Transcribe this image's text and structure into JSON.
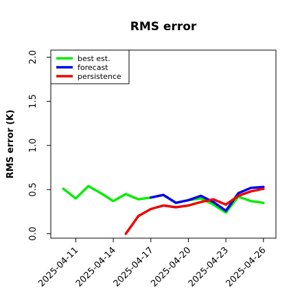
{
  "chart_data": {
    "type": "line",
    "title": "RMS error",
    "xlabel": "",
    "ylabel": "RMS error (K)",
    "ylim": [
      -0.05,
      2.08
    ],
    "y_ticks": [
      0.0,
      0.5,
      1.0,
      1.5,
      2.0
    ],
    "y_tick_labels": [
      "0.0",
      "0.5",
      "1.0",
      "1.5",
      "2.0"
    ],
    "x_range": [
      "2025-04-09",
      "2025-04-27"
    ],
    "x_ticks": [
      "2025-04-11",
      "2025-04-14",
      "2025-04-17",
      "2025-04-20",
      "2025-04-23",
      "2025-04-26"
    ],
    "x_tick_colors": [
      "#000000",
      "#000000",
      "#228b22",
      "#000000",
      "#000000",
      "#000000"
    ],
    "legend_position": "top-left",
    "grid": false,
    "series": [
      {
        "name": "best est.",
        "color": "#00ee00",
        "x": [
          "2025-04-10",
          "2025-04-11",
          "2025-04-12",
          "2025-04-13",
          "2025-04-14",
          "2025-04-15",
          "2025-04-16",
          "2025-04-17",
          "2025-04-18",
          "2025-04-19",
          "2025-04-20",
          "2025-04-21",
          "2025-04-22",
          "2025-04-23",
          "2025-04-24",
          "2025-04-25",
          "2025-04-26"
        ],
        "values": [
          0.51,
          0.4,
          0.54,
          0.46,
          0.37,
          0.45,
          0.39,
          0.41,
          0.44,
          0.35,
          0.38,
          0.4,
          0.33,
          0.24,
          0.42,
          0.37,
          0.35
        ]
      },
      {
        "name": "forecast",
        "color": "#0000ee",
        "x": [
          "2025-04-17",
          "2025-04-18",
          "2025-04-19",
          "2025-04-20",
          "2025-04-21",
          "2025-04-22",
          "2025-04-23",
          "2025-04-24",
          "2025-04-25",
          "2025-04-26"
        ],
        "values": [
          0.41,
          0.44,
          0.35,
          0.38,
          0.43,
          0.36,
          0.26,
          0.46,
          0.52,
          0.53
        ]
      },
      {
        "name": "persistence",
        "color": "#ee0000",
        "x": [
          "2025-04-15",
          "2025-04-16",
          "2025-04-17",
          "2025-04-18",
          "2025-04-19",
          "2025-04-20",
          "2025-04-21",
          "2025-04-22",
          "2025-04-23",
          "2025-04-24",
          "2025-04-25",
          "2025-04-26"
        ],
        "values": [
          0.0,
          0.2,
          0.28,
          0.32,
          0.3,
          0.32,
          0.36,
          0.39,
          0.33,
          0.43,
          0.48,
          0.51
        ]
      }
    ]
  }
}
